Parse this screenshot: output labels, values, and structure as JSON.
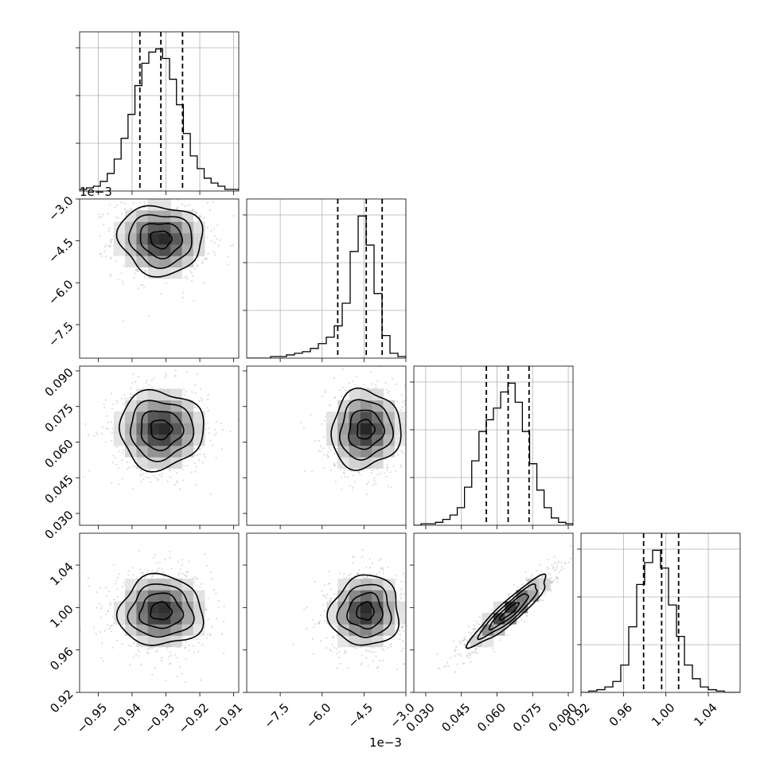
{
  "chart_data": {
    "type": "corner",
    "grid": true,
    "dims": [
      {
        "name": "p0",
        "range": [
          -0.9555,
          -0.9085
        ],
        "ticks": [
          -0.95,
          -0.94,
          -0.93,
          -0.92,
          -0.91
        ],
        "tick_labels": [
          "−0.95",
          "−0.94",
          "−0.93",
          "−0.92",
          "−0.91"
        ],
        "offset_label": "",
        "quantiles": [
          -0.9377,
          -0.9315,
          -0.9251
        ],
        "hist": [
          1,
          2,
          3,
          6,
          11,
          20,
          33,
          48,
          66,
          80,
          87,
          89,
          83,
          70,
          54,
          36,
          22,
          14,
          8,
          5,
          3,
          1,
          1
        ]
      },
      {
        "name": "p1",
        "range": [
          -8.7,
          -3.0
        ],
        "ticks": [
          -7.5,
          -6.0,
          -4.5,
          -3.0
        ],
        "tick_labels": [
          "−7.5",
          "−6.0",
          "−4.5",
          "−3.0"
        ],
        "offset_label": "1e−3",
        "quantiles": [
          -5.44,
          -4.42,
          -3.85
        ],
        "hist": [
          0,
          0,
          0,
          1,
          1,
          2,
          3,
          4,
          6,
          9,
          13,
          20,
          34,
          66,
          88,
          70,
          40,
          14,
          3,
          1
        ]
      },
      {
        "name": "p2",
        "range": [
          0.025,
          0.092
        ],
        "ticks": [
          0.03,
          0.045,
          0.06,
          0.075,
          0.09
        ],
        "tick_labels": [
          "0.030",
          "0.045",
          "0.060",
          "0.075",
          "0.090"
        ],
        "offset_label": "",
        "quantiles": [
          0.0555,
          0.0647,
          0.0735
        ],
        "hist": [
          0,
          1,
          1,
          2,
          4,
          7,
          12,
          26,
          44,
          64,
          72,
          80,
          91,
          97,
          84,
          64,
          42,
          24,
          12,
          5,
          2,
          1
        ]
      },
      {
        "name": "p3",
        "range": [
          0.92,
          1.07
        ],
        "ticks": [
          0.92,
          0.96,
          1.0,
          1.04
        ],
        "tick_labels": [
          "0.92",
          "0.96",
          "1.00",
          "1.04"
        ],
        "offset_label": "",
        "quantiles": [
          0.979,
          0.996,
          1.012
        ],
        "hist": [
          0,
          1,
          2,
          4,
          8,
          20,
          48,
          79,
          95,
          104,
          91,
          64,
          41,
          20,
          10,
          4,
          2,
          1,
          0,
          0
        ]
      }
    ],
    "pairs": [
      {
        "x": 0,
        "y": 1,
        "mean": [
          -0.9315,
          -4.45
        ],
        "sd": [
          0.0062,
          0.62
        ],
        "corr": -0.05
      },
      {
        "x": 0,
        "y": 2,
        "mean": [
          -0.9315,
          0.0653
        ],
        "sd": [
          0.0062,
          0.0082
        ],
        "corr": 0.0
      },
      {
        "x": 1,
        "y": 2,
        "mean": [
          -4.45,
          0.0653
        ],
        "sd": [
          0.62,
          0.0082
        ],
        "corr": 0.05
      },
      {
        "x": 0,
        "y": 3,
        "mean": [
          -0.9315,
          0.9965
        ],
        "sd": [
          0.0062,
          0.0165
        ],
        "corr": 0.0
      },
      {
        "x": 1,
        "y": 3,
        "mean": [
          -4.45,
          0.9965
        ],
        "sd": [
          0.62,
          0.0165
        ],
        "corr": 0.05
      },
      {
        "x": 2,
        "y": 3,
        "mean": [
          0.0653,
          0.9965
        ],
        "sd": [
          0.0082,
          0.0165
        ],
        "corr": 0.92
      }
    ],
    "contour_levels": [
      0.5,
      1.0,
      1.5,
      2.0
    ],
    "colors": {
      "line": "#000000",
      "grid": "#b0b0b0",
      "points": "#9a9a9a",
      "density_max": "#000000"
    }
  }
}
